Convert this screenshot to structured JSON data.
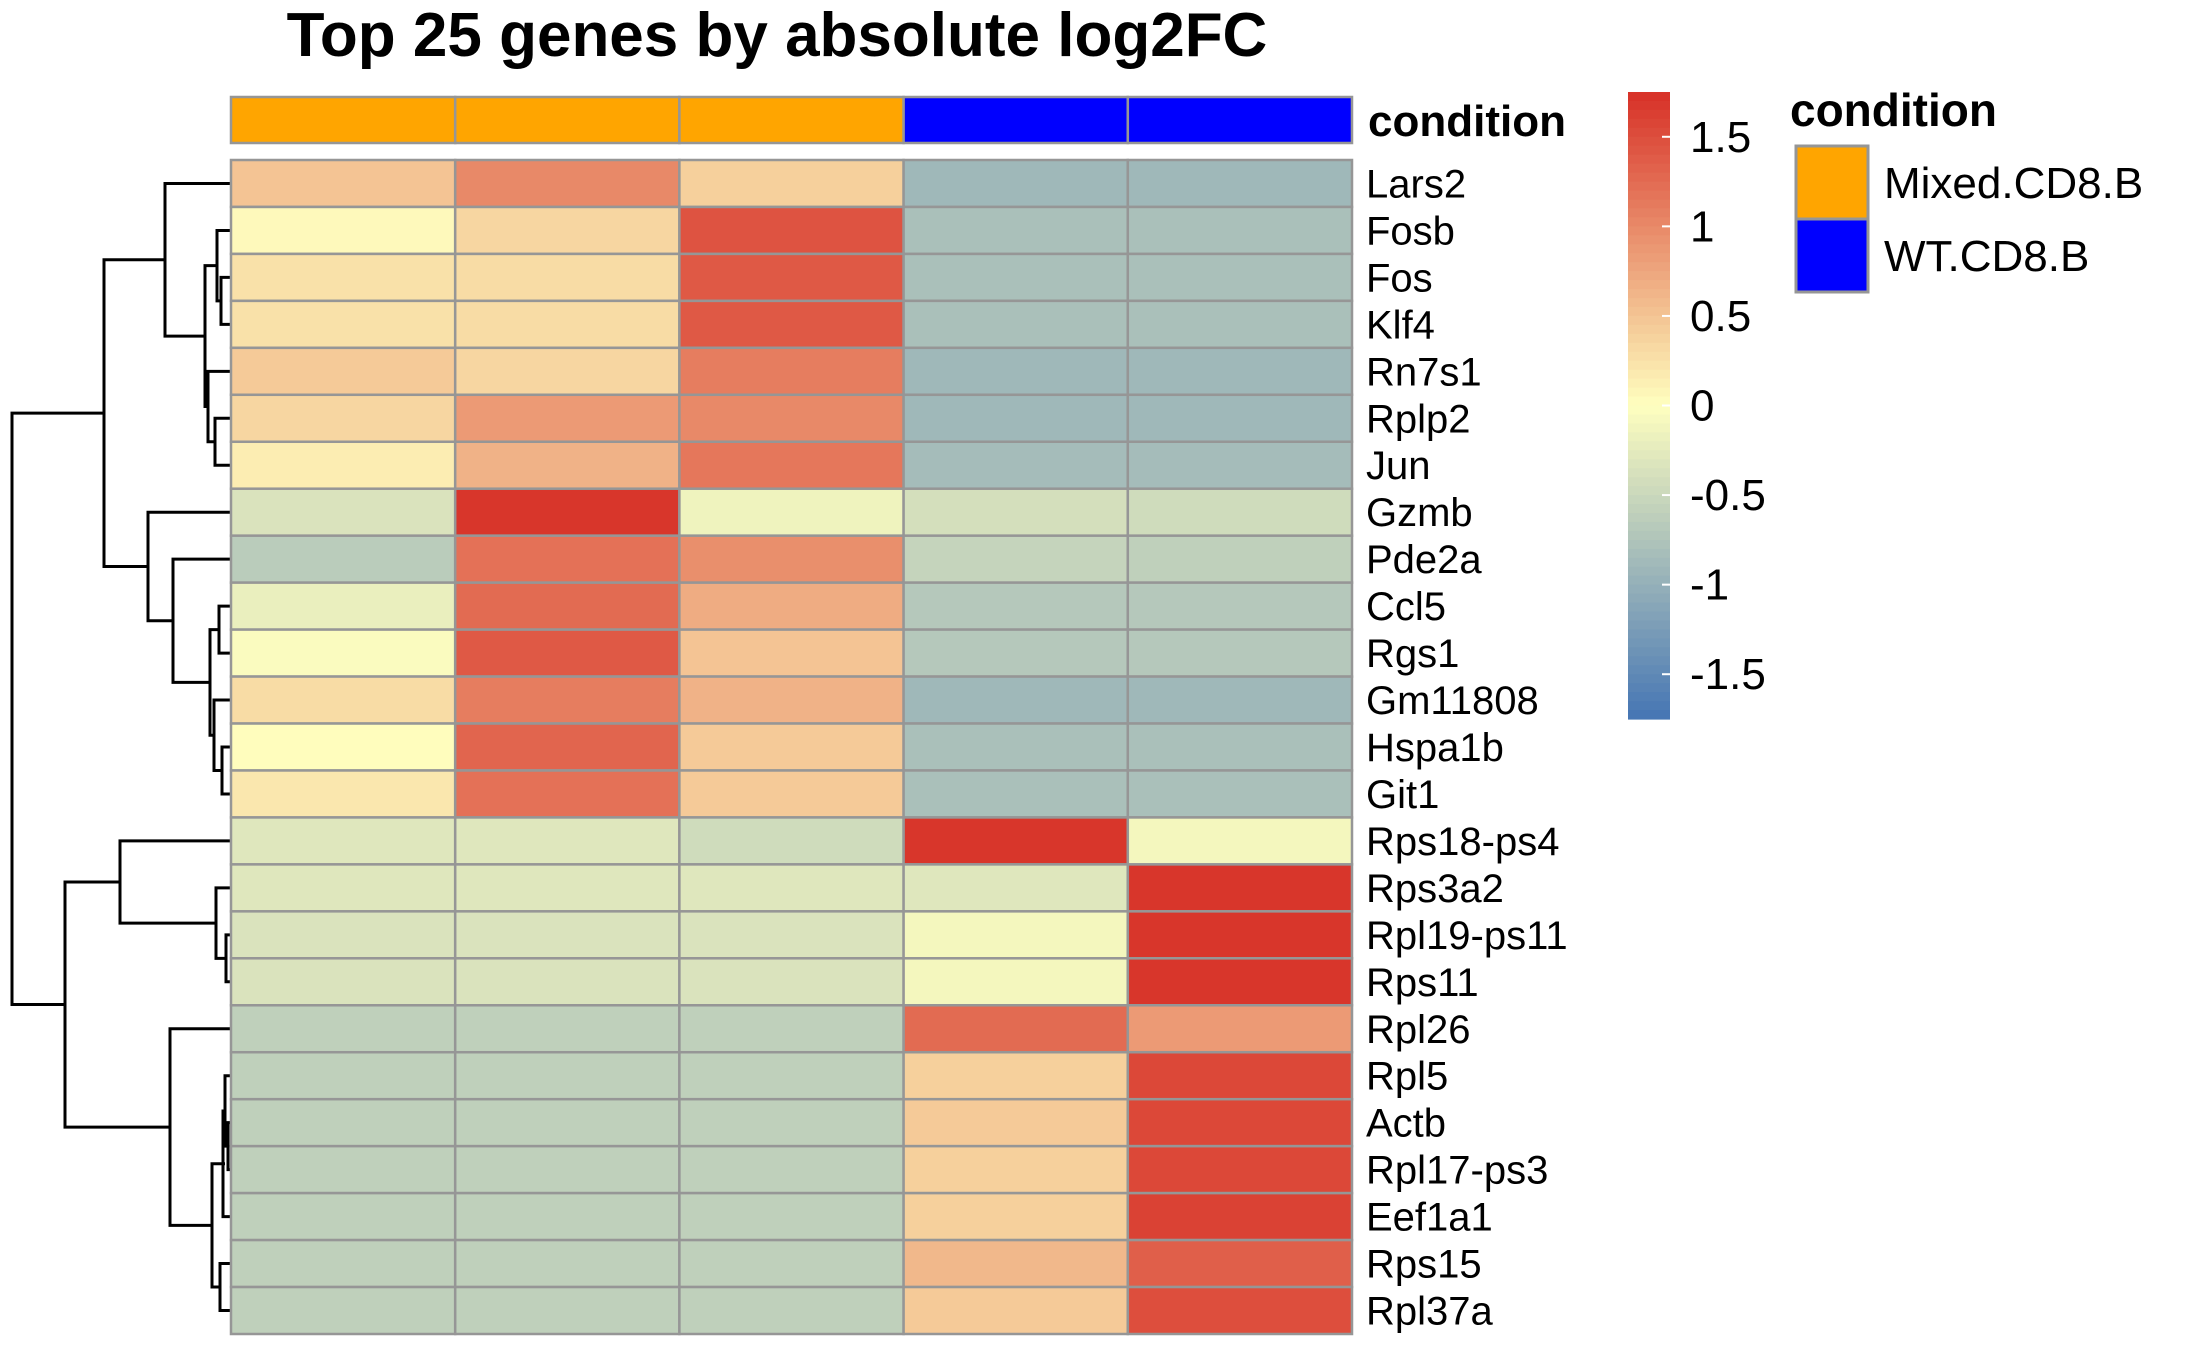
{
  "chart_data": {
    "type": "heatmap",
    "title": "Top 25 genes by absolute log2FC",
    "annotation": {
      "label": "condition",
      "columns": [
        "Mixed.CD8.B",
        "Mixed.CD8.B",
        "Mixed.CD8.B",
        "WT.CD8.B",
        "WT.CD8.B"
      ]
    },
    "legend": {
      "title": "condition",
      "entries": [
        {
          "label": "Mixed.CD8.B",
          "color": "#FFA500"
        },
        {
          "label": "WT.CD8.B",
          "color": "#0000FF"
        }
      ]
    },
    "colorbar": {
      "range": [
        -1.75,
        1.75
      ],
      "ticks": [
        1.5,
        1,
        0.5,
        0,
        -0.5,
        -1,
        -1.5
      ],
      "tick_labels": [
        "1.5",
        "1",
        "0.5",
        "0",
        "-0.5",
        "-1",
        "-1.5"
      ],
      "low_color": "#4575B4",
      "mid_color": "#FFFFBF",
      "high_color": "#D73027"
    },
    "rows": [
      "Lars2",
      "Fosb",
      "Fos",
      "Klf4",
      "Rn7s1",
      "Rplp2",
      "Jun",
      "Gzmb",
      "Pde2a",
      "Ccl5",
      "Rgs1",
      "Gm11808",
      "Hspa1b",
      "Git1",
      "Rps18-ps4",
      "Rps3a2",
      "Rpl19-ps11",
      "Rps11",
      "Rpl26",
      "Rpl5",
      "Actb",
      "Rpl17-ps3",
      "Eef1a1",
      "Rps15",
      "Rpl37a"
    ],
    "values": [
      [
        0.5,
        1.0,
        0.4,
        -0.9,
        -0.9
      ],
      [
        0.05,
        0.35,
        1.45,
        -0.8,
        -0.8
      ],
      [
        0.25,
        0.3,
        1.4,
        -0.8,
        -0.8
      ],
      [
        0.25,
        0.3,
        1.4,
        -0.8,
        -0.8
      ],
      [
        0.45,
        0.35,
        1.1,
        -0.9,
        -0.9
      ],
      [
        0.35,
        0.85,
        1.0,
        -0.9,
        -0.9
      ],
      [
        0.15,
        0.65,
        1.15,
        -0.85,
        -0.85
      ],
      [
        -0.35,
        1.7,
        -0.15,
        -0.4,
        -0.45
      ],
      [
        -0.65,
        1.2,
        0.95,
        -0.55,
        -0.6
      ],
      [
        -0.2,
        1.25,
        0.7,
        -0.7,
        -0.7
      ],
      [
        -0.05,
        1.4,
        0.5,
        -0.7,
        -0.7
      ],
      [
        0.3,
        1.1,
        0.65,
        -0.9,
        -0.9
      ],
      [
        0.02,
        1.3,
        0.45,
        -0.8,
        -0.8
      ],
      [
        0.2,
        1.2,
        0.45,
        -0.8,
        -0.8
      ],
      [
        -0.3,
        -0.3,
        -0.45,
        1.7,
        -0.1
      ],
      [
        -0.3,
        -0.3,
        -0.3,
        -0.3,
        1.7
      ],
      [
        -0.35,
        -0.35,
        -0.35,
        -0.1,
        1.7
      ],
      [
        -0.35,
        -0.35,
        -0.35,
        -0.1,
        1.7
      ],
      [
        -0.6,
        -0.6,
        -0.6,
        1.25,
        0.85
      ],
      [
        -0.6,
        -0.6,
        -0.6,
        0.4,
        1.55
      ],
      [
        -0.6,
        -0.6,
        -0.6,
        0.45,
        1.55
      ],
      [
        -0.6,
        -0.6,
        -0.6,
        0.4,
        1.55
      ],
      [
        -0.6,
        -0.6,
        -0.6,
        0.4,
        1.6
      ],
      [
        -0.6,
        -0.6,
        -0.6,
        0.6,
        1.35
      ],
      [
        -0.6,
        -0.6,
        -0.6,
        0.45,
        1.5
      ]
    ]
  }
}
